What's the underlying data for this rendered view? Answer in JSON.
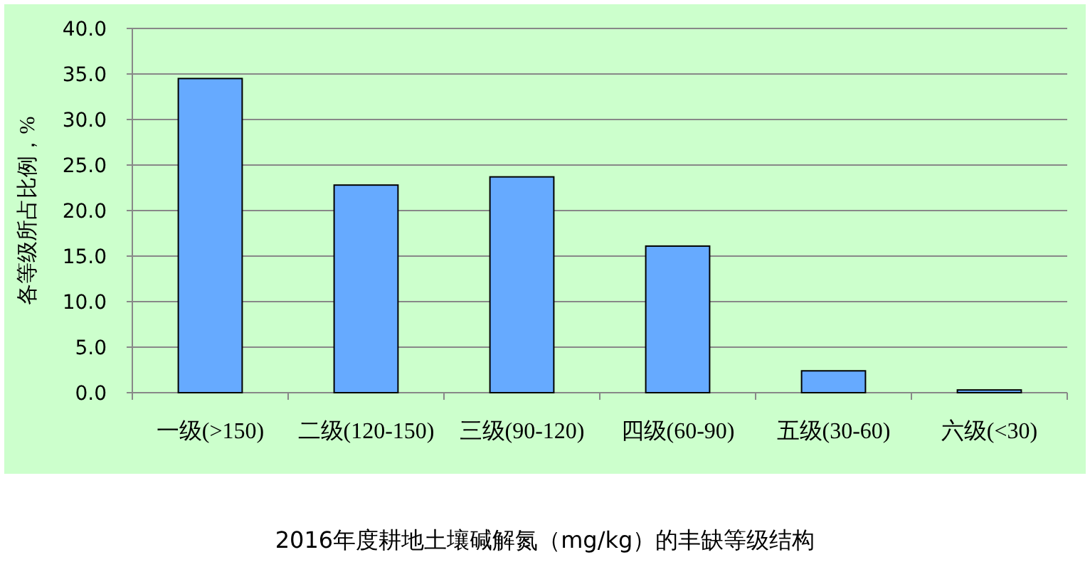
{
  "chart_data": {
    "type": "bar",
    "title": "2016年度耕地土壤碱解氮（mg/kg）的丰缺等级结构",
    "ylabel": "各等级所占比例，%",
    "categories": [
      "一级(>150)",
      "二级(120-150)",
      "三级(90-120)",
      "四级(60-90)",
      "五级(30-60)",
      "六级(<30)"
    ],
    "values": [
      34.5,
      22.8,
      23.7,
      16.1,
      2.4,
      0.3
    ],
    "color": "#66aaff",
    "ylim": [
      0,
      40
    ],
    "yticks": [
      {
        "value": 0,
        "label": "0.0"
      },
      {
        "value": 5,
        "label": "5.0"
      },
      {
        "value": 10,
        "label": "10.0"
      },
      {
        "value": 15,
        "label": "15.0"
      },
      {
        "value": 20,
        "label": "20.0"
      },
      {
        "value": 25,
        "label": "25.0"
      },
      {
        "value": 30,
        "label": "30.0"
      },
      {
        "value": 35,
        "label": "35.0"
      },
      {
        "value": 40,
        "label": "40.0"
      }
    ],
    "grid": "y"
  }
}
